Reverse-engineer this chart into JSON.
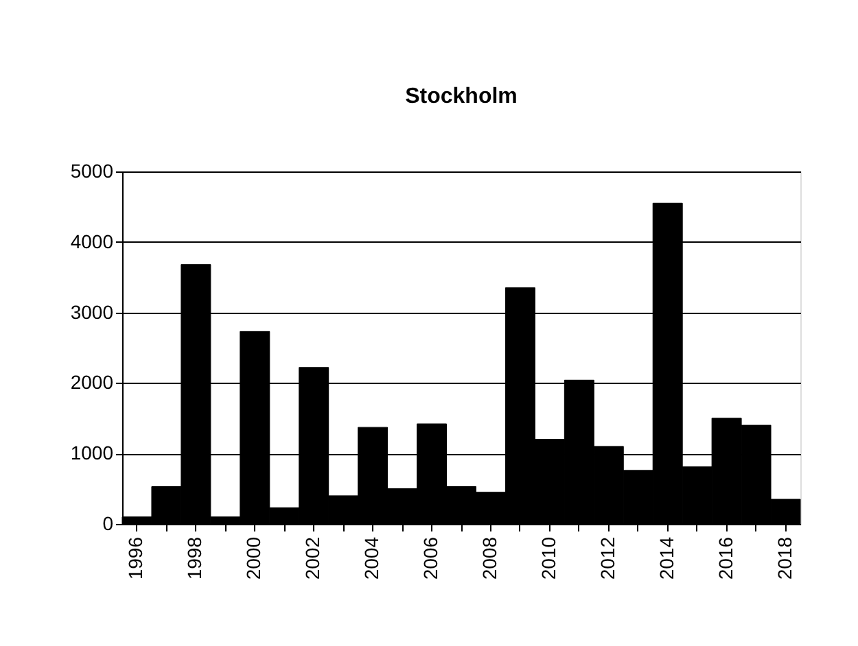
{
  "chart_data": {
    "type": "bar",
    "title": "Stockholm",
    "categories": [
      "1996",
      null,
      "1998",
      null,
      "2000",
      null,
      "2002",
      null,
      "2004",
      null,
      "2006",
      null,
      "2008",
      null,
      "2010",
      null,
      "2012",
      null,
      "2014",
      null,
      "2016",
      null,
      "2018"
    ],
    "values": [
      100,
      530,
      3680,
      100,
      2730,
      230,
      2220,
      400,
      1370,
      500,
      1420,
      530,
      450,
      3350,
      1200,
      2040,
      1100,
      760,
      4550,
      810,
      1500,
      1400,
      350
    ],
    "color": "#000000",
    "ylim": [
      0,
      5000
    ],
    "yticks": [
      0,
      1000,
      2000,
      3000,
      4000,
      5000
    ],
    "grid": "y"
  }
}
